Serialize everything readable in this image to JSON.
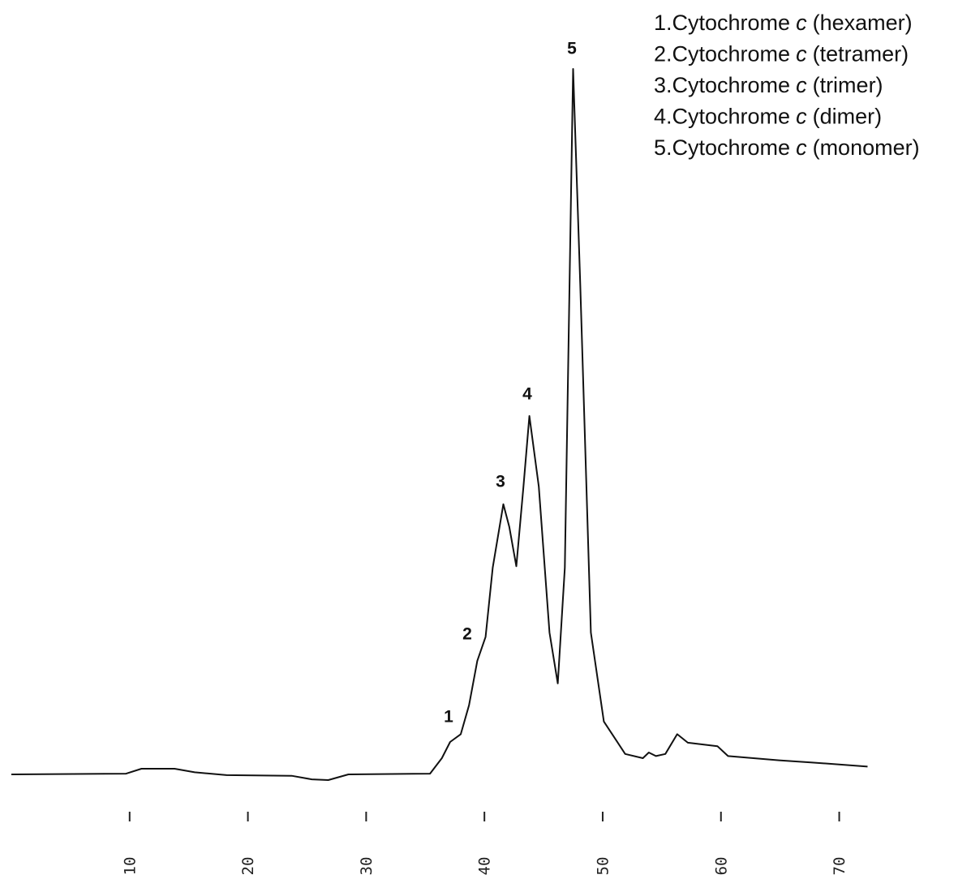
{
  "chart_data": {
    "type": "line",
    "legend_items": [
      {
        "prefix": "1.Cytochrome",
        "italic": "c",
        "suffix": "(hexamer)"
      },
      {
        "prefix": "2.Cytochrome",
        "italic": "c",
        "suffix": "(tetramer)"
      },
      {
        "prefix": "3.Cytochrome",
        "italic": "c",
        "suffix": "(trimer)"
      },
      {
        "prefix": "4.Cytochrome",
        "italic": "c",
        "suffix": "(dimer)"
      },
      {
        "prefix": "5.Cytochrome",
        "italic": "c",
        "suffix": "(monomer)"
      }
    ],
    "peak_labels": [
      "1",
      "2",
      "3",
      "4",
      "5"
    ],
    "x": [
      0,
      9.7,
      11.0,
      13.8,
      15.5,
      18.2,
      23.7,
      25.4,
      26.8,
      28.5,
      35.4,
      36.4,
      37.1,
      38.0,
      38.7,
      39.4,
      40.1,
      40.7,
      41.6,
      42.1,
      42.7,
      43.3,
      43.8,
      44.6,
      45.5,
      46.2,
      46.8,
      47.5,
      48.1,
      49.0,
      50.1,
      51.9,
      53.4,
      53.9,
      54.5,
      55.3,
      56.3,
      57.2,
      59.7,
      60.6,
      64.9,
      67.6,
      72.4
    ],
    "series": [
      {
        "color": "#111111",
        "values": [
          0,
          0.1,
          0.8,
          0.8,
          0.3,
          -0.1,
          -0.2,
          -0.7,
          -0.8,
          0,
          0.1,
          2.3,
          4.6,
          5.7,
          9.8,
          16.1,
          19.5,
          29.3,
          38.3,
          35.1,
          29.5,
          40.8,
          50.8,
          40.8,
          20.1,
          12.9,
          29.3,
          100,
          69.5,
          20.1,
          7.5,
          2.9,
          2.3,
          3.1,
          2.6,
          2.9,
          5.7,
          4.5,
          4.0,
          2.6,
          2.0,
          1.7,
          1.1
        ]
      }
    ],
    "xlim": [
      0,
      72.5
    ],
    "ylim": [
      -2,
      100
    ],
    "xticks": [
      10,
      20,
      30,
      40,
      50,
      60,
      70
    ]
  }
}
